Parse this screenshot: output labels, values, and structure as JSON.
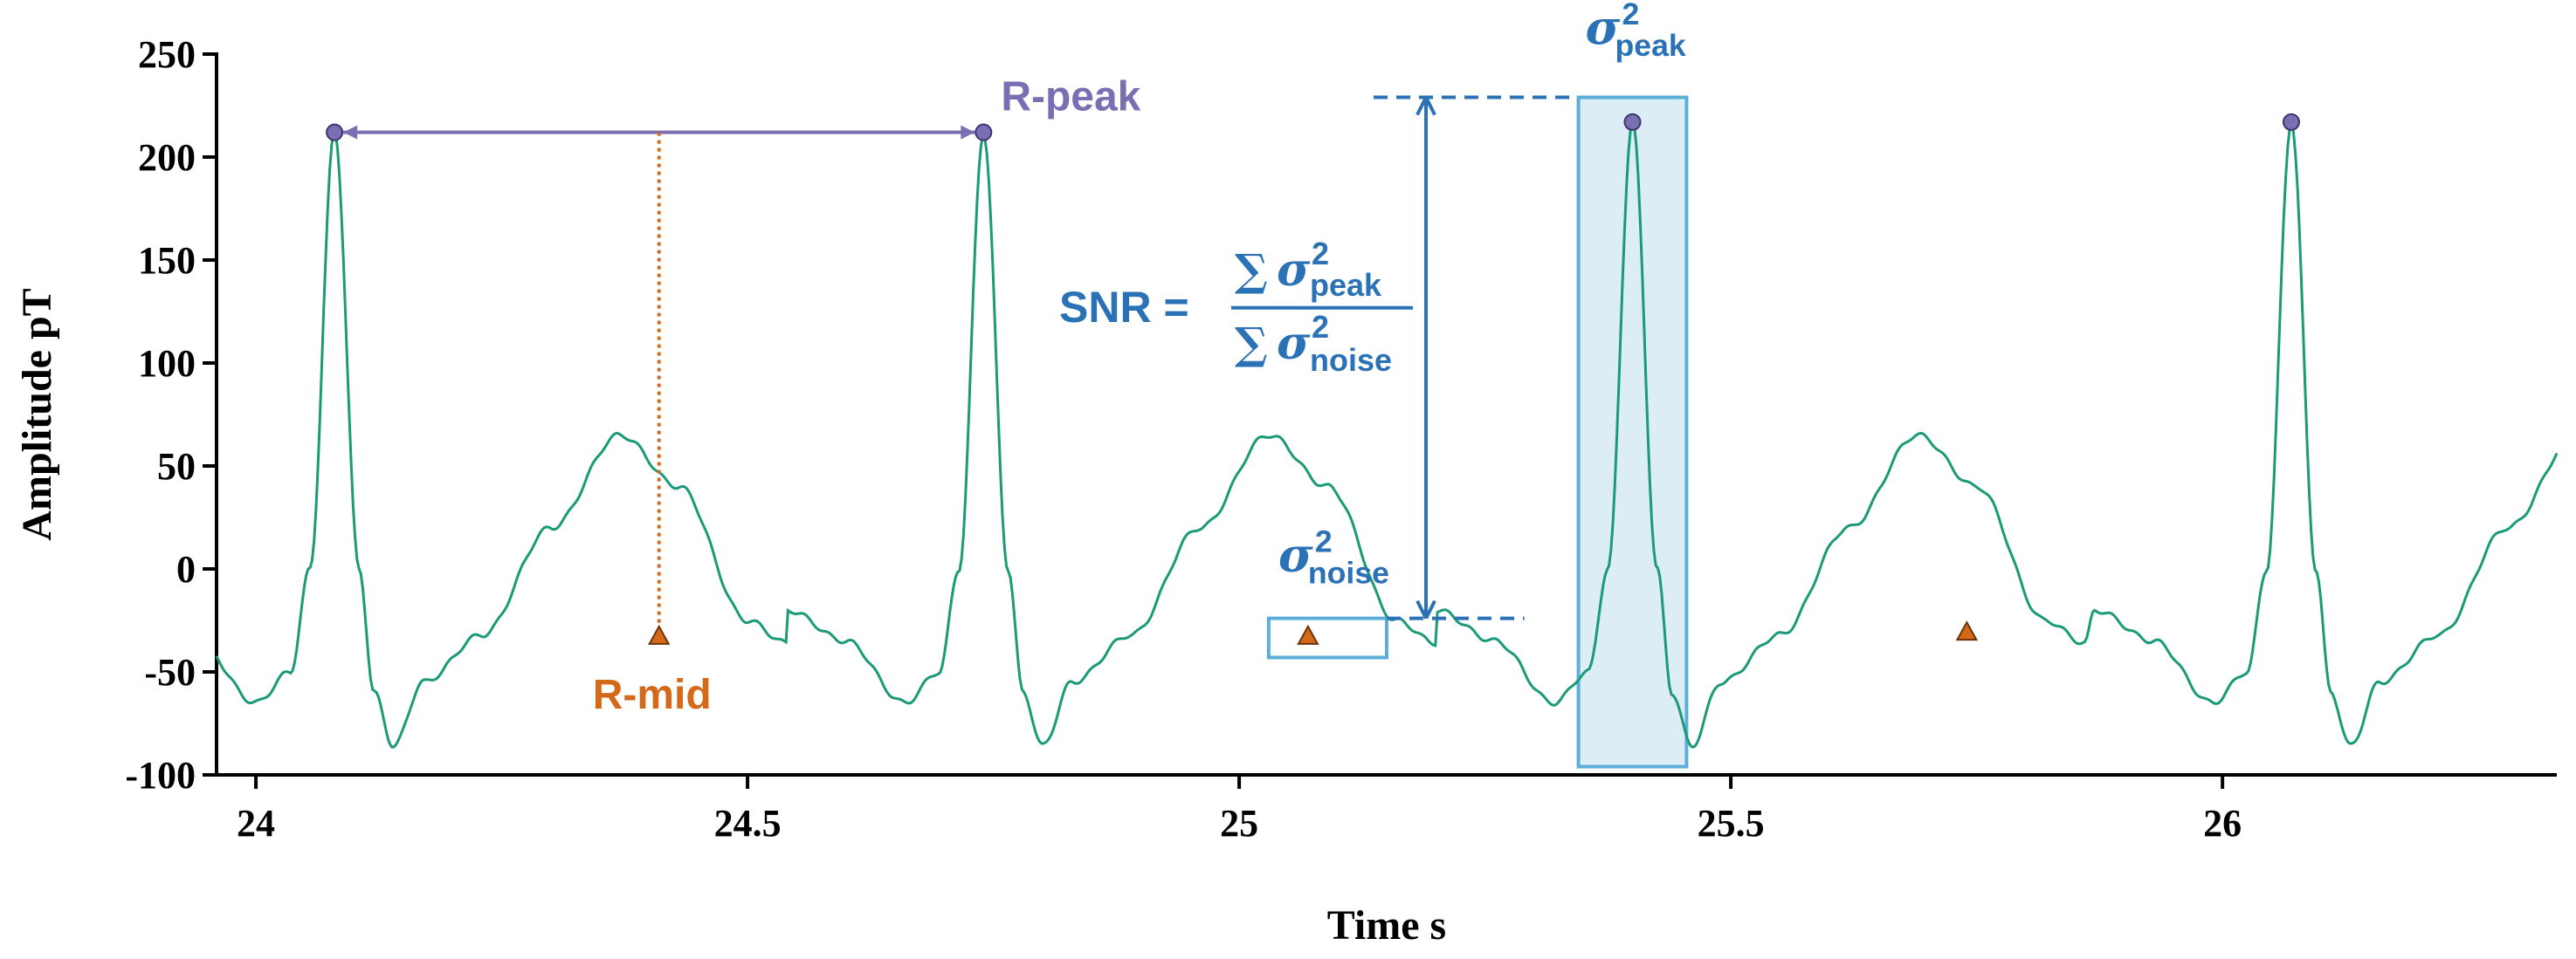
{
  "chart_data": {
    "type": "line",
    "xlabel": "Time s",
    "ylabel": "Amplitude pT",
    "xlim": [
      23.96,
      26.34
    ],
    "ylim": [
      -100,
      250
    ],
    "xticks": [
      24,
      24.5,
      25,
      25.5,
      26
    ],
    "xtick_labels": [
      "24",
      "24.5",
      "25",
      "25.5",
      "26"
    ],
    "yticks": [
      250,
      200,
      150,
      100,
      50,
      0,
      -50,
      -100
    ],
    "ytick_labels": [
      "250",
      "200",
      "150",
      "100",
      "50",
      "0",
      "-50",
      "-100"
    ],
    "grid": false,
    "series_color": "#1a9a78",
    "r_peaks": [
      {
        "x": 24.08,
        "y": 212
      },
      {
        "x": 24.74,
        "y": 212
      },
      {
        "x": 25.4,
        "y": 217
      },
      {
        "x": 26.07,
        "y": 217
      }
    ],
    "r_mids": [
      {
        "x": 24.41,
        "y": -33
      },
      {
        "x": 25.07,
        "y": -33
      },
      {
        "x": 25.74,
        "y": -31
      }
    ],
    "beat_shape_offsets_s": [
      -0.2,
      -0.14,
      -0.08,
      -0.045,
      -0.025,
      0,
      0.025,
      0.04,
      0.06,
      0.09,
      0.15,
      0.22,
      0.29,
      0.35,
      0.42,
      0.46
    ],
    "beat_shape_values": [
      -20,
      -35,
      -65,
      -50,
      0,
      214,
      0,
      -60,
      -86,
      -55,
      -32,
      20,
      65,
      40,
      -25,
      -36
    ],
    "annotations": {
      "r_peak_label": "R-peak",
      "r_mid_label": "R-mid",
      "sigma_symbol": "σ",
      "superscript": "2",
      "peak_subscript": "peak",
      "noise_subscript": "noise",
      "snr_lhs": "SNR =",
      "sum_symbol": "∑"
    },
    "colors": {
      "r_peak": "#7a6fb3",
      "r_mid": "#d4691a",
      "snr": "#2a72b5",
      "peak_box_fill": "#dcedf5",
      "box_stroke": "#5aaed8"
    }
  }
}
